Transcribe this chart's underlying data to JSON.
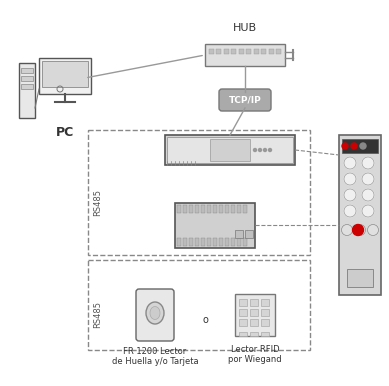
{
  "bg_color": "#ffffff",
  "line_color": "#999999",
  "dashed_color": "#888888",
  "dark_color": "#333333",
  "label_color": "#333333",
  "hub_label": "HUB",
  "tcpip_label": "TCP/IP",
  "pc_label": "PC",
  "rs485_label1": "RS485",
  "rs485_label2": "RS485",
  "reader_label1": "FR 1200 Lector",
  "reader_label2": "de Huella y/o Tarjeta",
  "rfid_label1": "Lector RFID",
  "rfid_label2": "por Wiegand",
  "or_label": "o"
}
